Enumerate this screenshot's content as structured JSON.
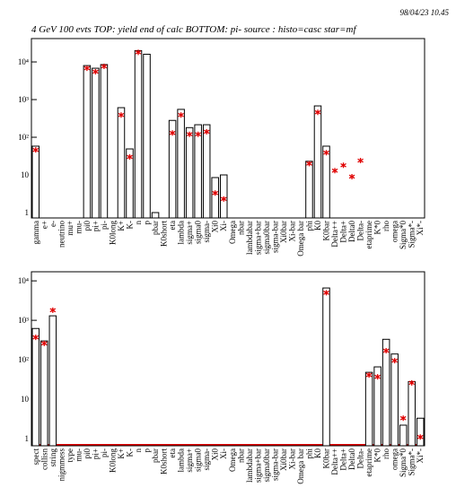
{
  "header": {
    "timestamp": "98/04/23  10.45",
    "title": "4 GeV 100 evts TOP: yield end of calc BOTTOM: pi- source : histo=casc star=mf"
  },
  "chart_data": [
    {
      "type": "bar",
      "log_scale": true,
      "categories": [
        "gamma",
        "e+",
        "e-",
        "neutrino",
        "mu+",
        "mu-",
        "pi0",
        "pi+",
        "pi-",
        "K0long",
        "K+",
        "K-",
        "n",
        "p",
        "pbar",
        "K0short",
        "eta",
        "lambda",
        "sigma+",
        "sigma0",
        "sigma-",
        "Xi0",
        "Xi-",
        "Omega",
        "nbar",
        "lambdabar",
        "sigma+bar",
        "sigma0bar",
        "sigma-bar",
        "Xi0bar",
        "Xi-bar",
        "Omega bar",
        "phi",
        "K0",
        "K0bar",
        "Delta++",
        "Delta+",
        "Delta0",
        "Delta-",
        "etaprime",
        "K*0",
        "rho",
        "omega",
        "Sigma*0",
        "Sigma*-",
        "Xi*-"
      ],
      "series": [
        {
          "marker": "bar",
          "color": "#000000",
          "values": [
            58,
            null,
            null,
            null,
            null,
            null,
            8000,
            6800,
            8500,
            null,
            610,
            49,
            20000,
            16000,
            1,
            null,
            280,
            550,
            180,
            215,
            215,
            8.5,
            10,
            null,
            null,
            null,
            null,
            null,
            null,
            null,
            null,
            null,
            23,
            680,
            58,
            null,
            null,
            null,
            null,
            null,
            null,
            null,
            null,
            null,
            null,
            null
          ]
        },
        {
          "marker": "star",
          "color": "#e00000",
          "values": [
            46,
            null,
            null,
            null,
            null,
            null,
            6800,
            5500,
            7600,
            null,
            390,
            30,
            18000,
            null,
            null,
            null,
            130,
            390,
            120,
            120,
            140,
            3.3,
            2.3,
            null,
            null,
            null,
            null,
            null,
            null,
            null,
            null,
            null,
            20,
            460,
            39,
            13,
            18,
            9,
            24,
            null,
            null,
            null,
            null,
            null,
            null,
            null
          ]
        }
      ],
      "ylim": [
        0.72,
        41700
      ],
      "yticks": [
        1,
        10,
        {
          "value": 100,
          "label": "10²"
        },
        {
          "value": 1000,
          "label": "10³"
        },
        {
          "value": 10000,
          "label": "10⁴"
        }
      ]
    },
    {
      "type": "bar",
      "log_scale": true,
      "categories": [
        "spect",
        "collisn",
        "string",
        "nigmmess",
        "type",
        "mu-",
        "pi0",
        "pi+",
        "pi-",
        "K0long",
        "K+",
        "K-",
        "n",
        "p",
        "pbar",
        "K0short",
        "eta",
        "lambda",
        "sigma+",
        "sigma0",
        "sigma-",
        "Xi0",
        "Xi-",
        "Omega",
        "nbar",
        "lambdabar",
        "sigma+bar",
        "sigma0bar",
        "sigma-bar",
        "Xi0bar",
        "Xi-bar",
        "Omega bar",
        "phi",
        "K0",
        "K0bar",
        "Delta++",
        "Delta+",
        "Delta0",
        "Delta-",
        "etaprime",
        "K*0",
        "rho",
        "omega",
        "Sigma*0",
        "Sigma*-",
        "Xi*-"
      ],
      "series": [
        {
          "marker": "bar",
          "color": "#000000",
          "values": [
            620,
            300,
            1300,
            null,
            null,
            null,
            null,
            null,
            null,
            null,
            null,
            null,
            null,
            null,
            null,
            null,
            null,
            null,
            null,
            null,
            null,
            null,
            null,
            null,
            null,
            null,
            null,
            null,
            null,
            null,
            null,
            null,
            null,
            null,
            6600,
            null,
            null,
            null,
            null,
            48,
            66,
            330,
            140,
            2.2,
            28,
            3.3
          ]
        },
        {
          "marker": "star",
          "color": "#e00000",
          "values": [
            370,
            260,
            1800,
            null,
            null,
            null,
            null,
            null,
            null,
            null,
            null,
            null,
            null,
            null,
            null,
            null,
            null,
            null,
            null,
            null,
            null,
            null,
            null,
            null,
            null,
            null,
            null,
            null,
            null,
            null,
            null,
            null,
            null,
            null,
            5000,
            null,
            null,
            null,
            null,
            41,
            37,
            170,
            95,
            3.3,
            26,
            1.1
          ]
        }
      ],
      "ylim": [
        0.66,
        17000
      ],
      "yticks": [
        1,
        10,
        {
          "value": 100,
          "label": "10²"
        },
        {
          "value": 1000,
          "label": "10³"
        },
        {
          "value": 10000,
          "label": "10⁴"
        }
      ]
    }
  ]
}
